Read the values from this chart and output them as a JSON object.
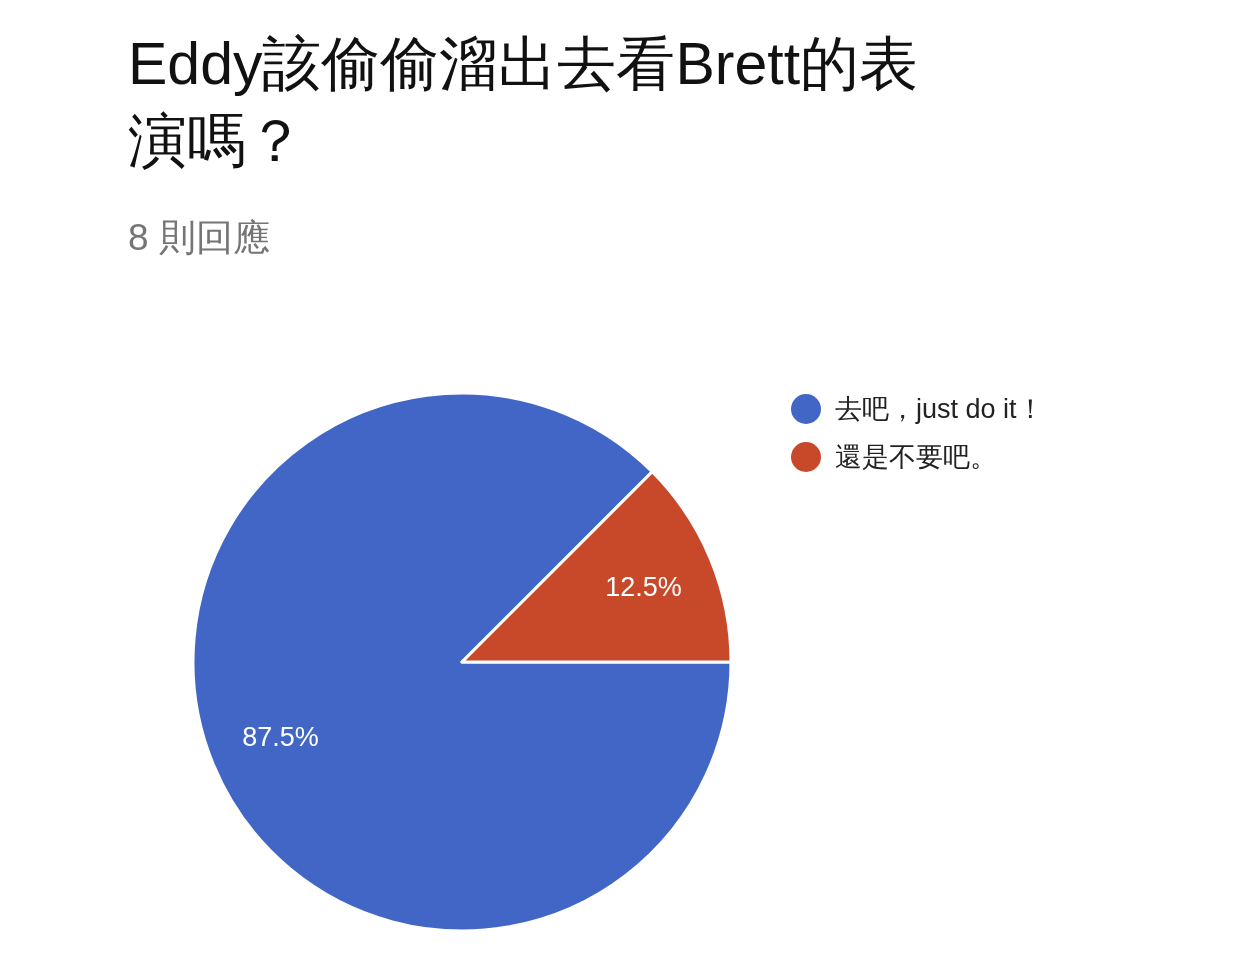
{
  "chart_data": {
    "type": "pie",
    "title": "Eddy該偷偷溜出去看Brett的表演嗎？",
    "subtitle": "8 則回應",
    "categories": [
      "去吧，just do it！",
      "還是不要吧。"
    ],
    "values": [
      87.5,
      12.5
    ],
    "colors": [
      "#4166c5",
      "#c8482a"
    ],
    "value_labels": [
      "87.5%",
      "12.5%"
    ],
    "legend": "right"
  }
}
